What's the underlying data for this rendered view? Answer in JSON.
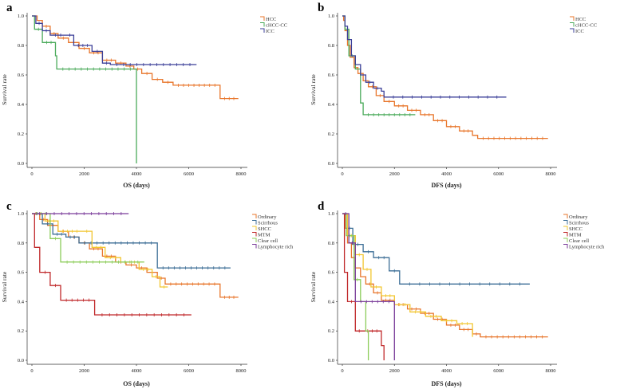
{
  "chart_data": [
    {
      "type": "line",
      "panel_label": "a",
      "xlabel": "OS (days)",
      "ylabel": "Survival rate",
      "xlim": [
        0,
        8000
      ],
      "ylim": [
        0,
        1.0
      ],
      "xticks": [
        "0",
        "2000",
        "4000",
        "6000",
        "8000"
      ],
      "yticks": [
        "0.0",
        "0.2",
        "0.4",
        "0.6",
        "0.8",
        "1.0"
      ],
      "legend_position": "top-right",
      "series": [
        {
          "name": "HCC",
          "color": "#e8752a",
          "points": [
            [
              0,
              1.0
            ],
            [
              200,
              0.97
            ],
            [
              400,
              0.93
            ],
            [
              700,
              0.88
            ],
            [
              1000,
              0.85
            ],
            [
              1400,
              0.82
            ],
            [
              1800,
              0.78
            ],
            [
              2200,
              0.75
            ],
            [
              2700,
              0.7
            ],
            [
              3200,
              0.68
            ],
            [
              3600,
              0.66
            ],
            [
              3900,
              0.64
            ],
            [
              4200,
              0.61
            ],
            [
              4600,
              0.57
            ],
            [
              5000,
              0.55
            ],
            [
              5400,
              0.53
            ],
            [
              7200,
              0.53
            ],
            [
              7200,
              0.44
            ],
            [
              7900,
              0.44
            ]
          ]
        },
        {
          "name": "cHCC-CC",
          "color": "#4aaa5a",
          "points": [
            [
              0,
              1.0
            ],
            [
              100,
              0.91
            ],
            [
              400,
              0.82
            ],
            [
              900,
              0.73
            ],
            [
              950,
              0.64
            ],
            [
              4000,
              0.64
            ],
            [
              4000,
              0.0
            ]
          ]
        },
        {
          "name": "ICC",
          "color": "#3b3f98",
          "points": [
            [
              0,
              1.0
            ],
            [
              150,
              0.95
            ],
            [
              400,
              0.9
            ],
            [
              700,
              0.87
            ],
            [
              1300,
              0.87
            ],
            [
              1600,
              0.8
            ],
            [
              2300,
              0.76
            ],
            [
              2700,
              0.68
            ],
            [
              3000,
              0.67
            ],
            [
              6300,
              0.67
            ]
          ]
        }
      ]
    },
    {
      "type": "line",
      "panel_label": "b",
      "xlabel": "DFS (days)",
      "ylabel": "Survival rate",
      "xlim": [
        0,
        8000
      ],
      "ylim": [
        0,
        1.0
      ],
      "xticks": [
        "0",
        "2000",
        "4000",
        "6000",
        "8000"
      ],
      "yticks": [
        "0.0",
        "0.2",
        "0.4",
        "0.6",
        "0.8",
        "1.0"
      ],
      "legend_position": "top-right",
      "series": [
        {
          "name": "HCC",
          "color": "#e8752a",
          "points": [
            [
              0,
              1.0
            ],
            [
              50,
              0.97
            ],
            [
              100,
              0.9
            ],
            [
              200,
              0.8
            ],
            [
              300,
              0.72
            ],
            [
              450,
              0.65
            ],
            [
              600,
              0.61
            ],
            [
              800,
              0.56
            ],
            [
              1000,
              0.52
            ],
            [
              1300,
              0.46
            ],
            [
              1600,
              0.42
            ],
            [
              2000,
              0.39
            ],
            [
              2500,
              0.36
            ],
            [
              3000,
              0.33
            ],
            [
              3500,
              0.29
            ],
            [
              4000,
              0.25
            ],
            [
              4500,
              0.22
            ],
            [
              5000,
              0.19
            ],
            [
              5200,
              0.17
            ],
            [
              7900,
              0.17
            ]
          ]
        },
        {
          "name": "cHCC-CC",
          "color": "#4aaa5a",
          "points": [
            [
              0,
              1.0
            ],
            [
              100,
              0.91
            ],
            [
              250,
              0.73
            ],
            [
              500,
              0.64
            ],
            [
              700,
              0.41
            ],
            [
              800,
              0.33
            ],
            [
              2800,
              0.33
            ]
          ]
        },
        {
          "name": "ICC",
          "color": "#3b3f98",
          "points": [
            [
              0,
              1.0
            ],
            [
              100,
              0.93
            ],
            [
              200,
              0.84
            ],
            [
              350,
              0.73
            ],
            [
              500,
              0.67
            ],
            [
              700,
              0.6
            ],
            [
              900,
              0.55
            ],
            [
              1200,
              0.51
            ],
            [
              1500,
              0.49
            ],
            [
              1600,
              0.45
            ],
            [
              6300,
              0.45
            ]
          ]
        }
      ]
    },
    {
      "type": "line",
      "panel_label": "c",
      "xlabel": "OS (days)",
      "ylabel": "Survival rate",
      "xlim": [
        0,
        8000
      ],
      "ylim": [
        0,
        1.0
      ],
      "xticks": [
        "0",
        "2000",
        "4000",
        "6000",
        "8000"
      ],
      "yticks": [
        "0.0",
        "0.2",
        "0.4",
        "0.6",
        "0.8",
        "1.0"
      ],
      "legend_position": "top-right",
      "series": [
        {
          "name": "Ordinary",
          "color": "#e8752a",
          "points": [
            [
              0,
              1.0
            ],
            [
              300,
              0.96
            ],
            [
              600,
              0.92
            ],
            [
              1000,
              0.88
            ],
            [
              1400,
              0.84
            ],
            [
              1800,
              0.8
            ],
            [
              2200,
              0.76
            ],
            [
              2700,
              0.71
            ],
            [
              3200,
              0.67
            ],
            [
              3600,
              0.65
            ],
            [
              4000,
              0.63
            ],
            [
              4400,
              0.6
            ],
            [
              4800,
              0.56
            ],
            [
              5100,
              0.52
            ],
            [
              7200,
              0.52
            ],
            [
              7200,
              0.43
            ],
            [
              7900,
              0.43
            ]
          ]
        },
        {
          "name": "Scirrhous",
          "color": "#3c6e96",
          "points": [
            [
              0,
              1.0
            ],
            [
              400,
              0.93
            ],
            [
              800,
              0.86
            ],
            [
              1300,
              0.84
            ],
            [
              1800,
              0.8
            ],
            [
              4800,
              0.8
            ],
            [
              4800,
              0.63
            ],
            [
              7600,
              0.63
            ]
          ]
        },
        {
          "name": "SHCC",
          "color": "#f2c630",
          "points": [
            [
              0,
              1.0
            ],
            [
              500,
              0.95
            ],
            [
              1000,
              0.88
            ],
            [
              1900,
              0.88
            ],
            [
              2300,
              0.77
            ],
            [
              2800,
              0.7
            ],
            [
              3400,
              0.67
            ],
            [
              4100,
              0.62
            ],
            [
              4600,
              0.57
            ],
            [
              4900,
              0.5
            ],
            [
              5200,
              0.5
            ]
          ]
        },
        {
          "name": "MTM",
          "color": "#c0282a",
          "points": [
            [
              0,
              1.0
            ],
            [
              100,
              0.77
            ],
            [
              300,
              0.6
            ],
            [
              700,
              0.51
            ],
            [
              1100,
              0.41
            ],
            [
              2400,
              0.41
            ],
            [
              2400,
              0.31
            ],
            [
              6100,
              0.31
            ]
          ]
        },
        {
          "name": "Clear cell",
          "color": "#8ccd5a",
          "points": [
            [
              0,
              1.0
            ],
            [
              700,
              0.83
            ],
            [
              1100,
              0.67
            ],
            [
              4300,
              0.67
            ]
          ]
        },
        {
          "name": "Lymphocyte rich",
          "color": "#7a3c9a",
          "points": [
            [
              0,
              1.0
            ],
            [
              3700,
              1.0
            ]
          ]
        }
      ]
    },
    {
      "type": "line",
      "panel_label": "d",
      "xlabel": "DFS (days)",
      "ylabel": "Survival rate",
      "xlim": [
        0,
        8000
      ],
      "ylim": [
        0,
        1.0
      ],
      "xticks": [
        "0",
        "2000",
        "4000",
        "6000",
        "8000"
      ],
      "yticks": [
        "0.0",
        "0.2",
        "0.4",
        "0.6",
        "0.8",
        "1.0"
      ],
      "legend_position": "top-right",
      "series": [
        {
          "name": "Ordinary",
          "color": "#e8752a",
          "points": [
            [
              0,
              1.0
            ],
            [
              100,
              0.9
            ],
            [
              200,
              0.8
            ],
            [
              350,
              0.7
            ],
            [
              500,
              0.63
            ],
            [
              700,
              0.57
            ],
            [
              900,
              0.52
            ],
            [
              1200,
              0.46
            ],
            [
              1500,
              0.41
            ],
            [
              2000,
              0.38
            ],
            [
              2500,
              0.35
            ],
            [
              3000,
              0.32
            ],
            [
              3500,
              0.28
            ],
            [
              4000,
              0.24
            ],
            [
              4500,
              0.21
            ],
            [
              5000,
              0.18
            ],
            [
              5300,
              0.16
            ],
            [
              7900,
              0.16
            ]
          ]
        },
        {
          "name": "Scirrhous",
          "color": "#3c6e96",
          "points": [
            [
              0,
              1.0
            ],
            [
              150,
              0.9
            ],
            [
              400,
              0.79
            ],
            [
              800,
              0.74
            ],
            [
              1200,
              0.7
            ],
            [
              1800,
              0.61
            ],
            [
              2200,
              0.52
            ],
            [
              7200,
              0.52
            ]
          ]
        },
        {
          "name": "SHCC",
          "color": "#f2c630",
          "points": [
            [
              0,
              1.0
            ],
            [
              200,
              0.85
            ],
            [
              500,
              0.72
            ],
            [
              800,
              0.62
            ],
            [
              1100,
              0.5
            ],
            [
              1500,
              0.44
            ],
            [
              2000,
              0.38
            ],
            [
              2600,
              0.33
            ],
            [
              3200,
              0.3
            ],
            [
              3800,
              0.27
            ],
            [
              4400,
              0.25
            ],
            [
              5000,
              0.25
            ],
            [
              5000,
              0.16
            ]
          ]
        },
        {
          "name": "MTM",
          "color": "#c0282a",
          "points": [
            [
              0,
              1.0
            ],
            [
              80,
              0.6
            ],
            [
              200,
              0.4
            ],
            [
              500,
              0.2
            ],
            [
              800,
              0.2
            ],
            [
              1500,
              0.2
            ],
            [
              1500,
              0.1
            ],
            [
              1600,
              0.1
            ],
            [
              1600,
              0.0
            ]
          ]
        },
        {
          "name": "Clear cell",
          "color": "#8ccd5a",
          "points": [
            [
              0,
              1.0
            ],
            [
              150,
              0.85
            ],
            [
              450,
              0.55
            ],
            [
              700,
              0.4
            ],
            [
              900,
              0.2
            ],
            [
              1000,
              0.0
            ]
          ]
        },
        {
          "name": "Lymphocyte rich",
          "color": "#7a3c9a",
          "points": [
            [
              0,
              1.0
            ],
            [
              250,
              0.8
            ],
            [
              500,
              0.4
            ],
            [
              2000,
              0.4
            ],
            [
              2000,
              0.0
            ]
          ]
        }
      ]
    }
  ]
}
